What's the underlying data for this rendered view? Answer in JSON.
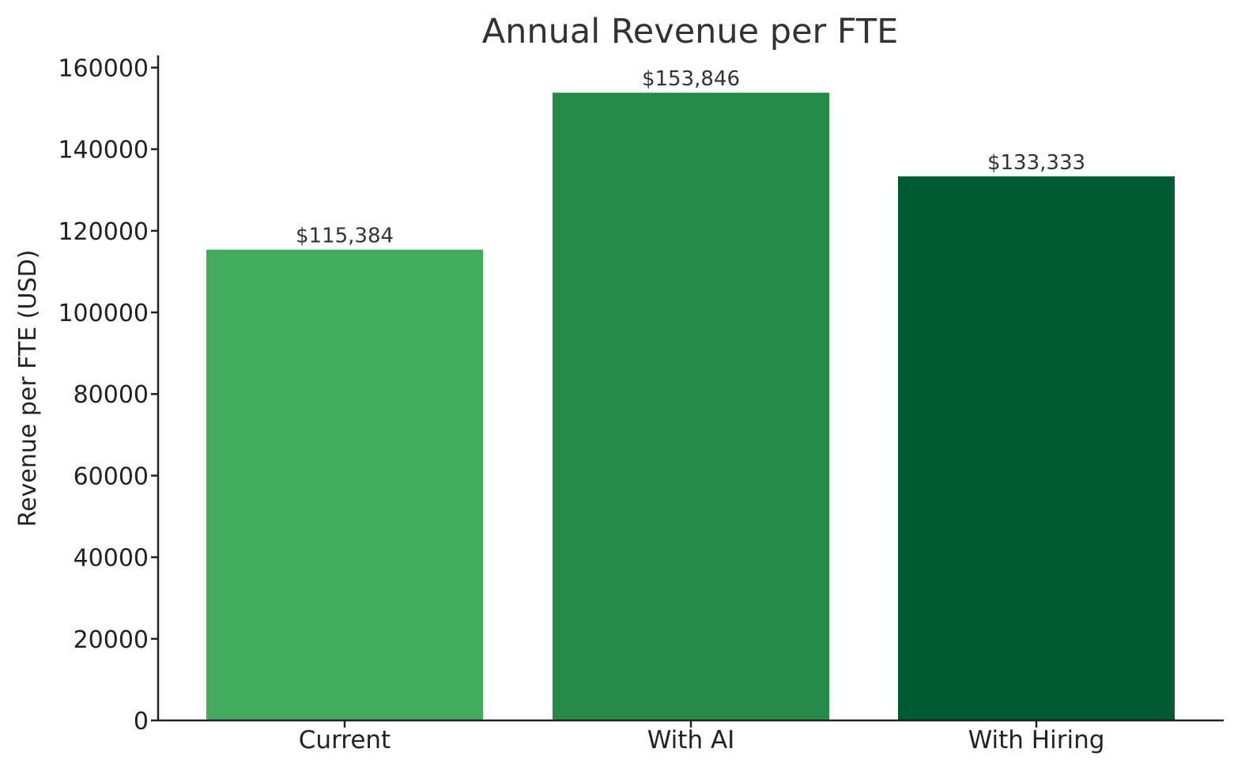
{
  "chart_data": {
    "type": "bar",
    "title": "Annual Revenue per FTE",
    "xlabel": "",
    "ylabel": "Revenue per FTE (USD)",
    "ylim": [
      0,
      163000
    ],
    "yticks": [
      0,
      20000,
      40000,
      60000,
      80000,
      100000,
      120000,
      140000,
      160000
    ],
    "ytick_labels": [
      "0",
      "20000",
      "40000",
      "60000",
      "80000",
      "100000",
      "120000",
      "140000",
      "160000"
    ],
    "categories": [
      "Current",
      "With AI",
      "With Hiring"
    ],
    "values": [
      115384,
      153846,
      133333
    ],
    "data_labels": [
      "$115,384",
      "$153,846",
      "$133,333"
    ],
    "colors": [
      "#41AB5D",
      "#238B45",
      "#005A32"
    ],
    "grid": false,
    "legend": "none"
  }
}
